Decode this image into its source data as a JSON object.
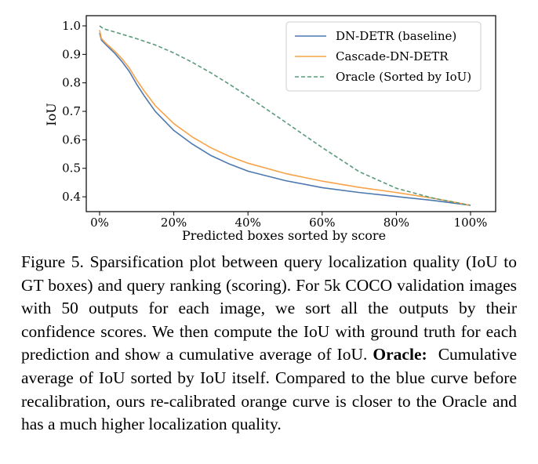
{
  "chart_data": {
    "type": "line",
    "xlabel": "Predicted boxes sorted by score",
    "ylabel": "IoU",
    "xlim": [
      0,
      100
    ],
    "ylim": [
      0.37,
      1.0
    ],
    "x_ticks": [
      "0%",
      "20%",
      "40%",
      "60%",
      "80%",
      "100%"
    ],
    "x_tick_values": [
      0,
      20,
      40,
      60,
      80,
      100
    ],
    "y_ticks": [
      "1.0",
      "0.9",
      "0.8",
      "0.7",
      "0.6",
      "0.5",
      "0.4"
    ],
    "y_tick_values": [
      1.0,
      0.9,
      0.8,
      0.7,
      0.6,
      0.5,
      0.4
    ],
    "legend_position": "top-right",
    "grid": false,
    "series": [
      {
        "name": "DN-DETR (baseline)",
        "color": "#4c78b0",
        "style": "solid",
        "x": [
          0,
          0.5,
          2,
          4,
          6,
          8,
          10,
          12,
          15,
          20,
          25,
          30,
          35,
          40,
          50,
          60,
          70,
          80,
          90,
          100
        ],
        "y": [
          0.975,
          0.95,
          0.93,
          0.905,
          0.875,
          0.84,
          0.795,
          0.755,
          0.7,
          0.633,
          0.585,
          0.545,
          0.515,
          0.49,
          0.457,
          0.432,
          0.415,
          0.401,
          0.387,
          0.37
        ]
      },
      {
        "name": "Cascade-DN-DETR",
        "color": "#f7a34a",
        "style": "solid",
        "x": [
          0,
          0.5,
          2,
          4,
          6,
          8,
          10,
          12,
          15,
          20,
          25,
          30,
          35,
          40,
          50,
          60,
          70,
          80,
          90,
          100
        ],
        "y": [
          0.985,
          0.955,
          0.935,
          0.912,
          0.885,
          0.852,
          0.81,
          0.772,
          0.72,
          0.657,
          0.61,
          0.572,
          0.542,
          0.518,
          0.482,
          0.455,
          0.433,
          0.415,
          0.395,
          0.37
        ]
      },
      {
        "name": "Oracle (Sorted by IoU)",
        "color": "#5b9a7a",
        "style": "dashed",
        "x": [
          0,
          1,
          5,
          10,
          15,
          20,
          25,
          30,
          35,
          40,
          50,
          60,
          70,
          80,
          90,
          100
        ],
        "y": [
          1.0,
          0.99,
          0.975,
          0.955,
          0.933,
          0.905,
          0.872,
          0.835,
          0.795,
          0.752,
          0.663,
          0.573,
          0.488,
          0.43,
          0.395,
          0.37
        ]
      }
    ]
  },
  "caption": {
    "lead": "Figure 5. Sparsification plot between query localization quality (IoU to GT boxes) and query ranking (scoring). For 5k COCO validation images with 50 outputs for each image, we sort all the outputs by their confidence scores. We then compute the IoU with ground truth for each prediction and show a cumulative average of IoU.",
    "bold": "Oracle:",
    "rest": "Cumulative average of IoU sorted by IoU itself. Compared to the blue curve before recalibration, ours re-calibrated orange curve is closer to the Oracle and has a much higher localization quality."
  }
}
